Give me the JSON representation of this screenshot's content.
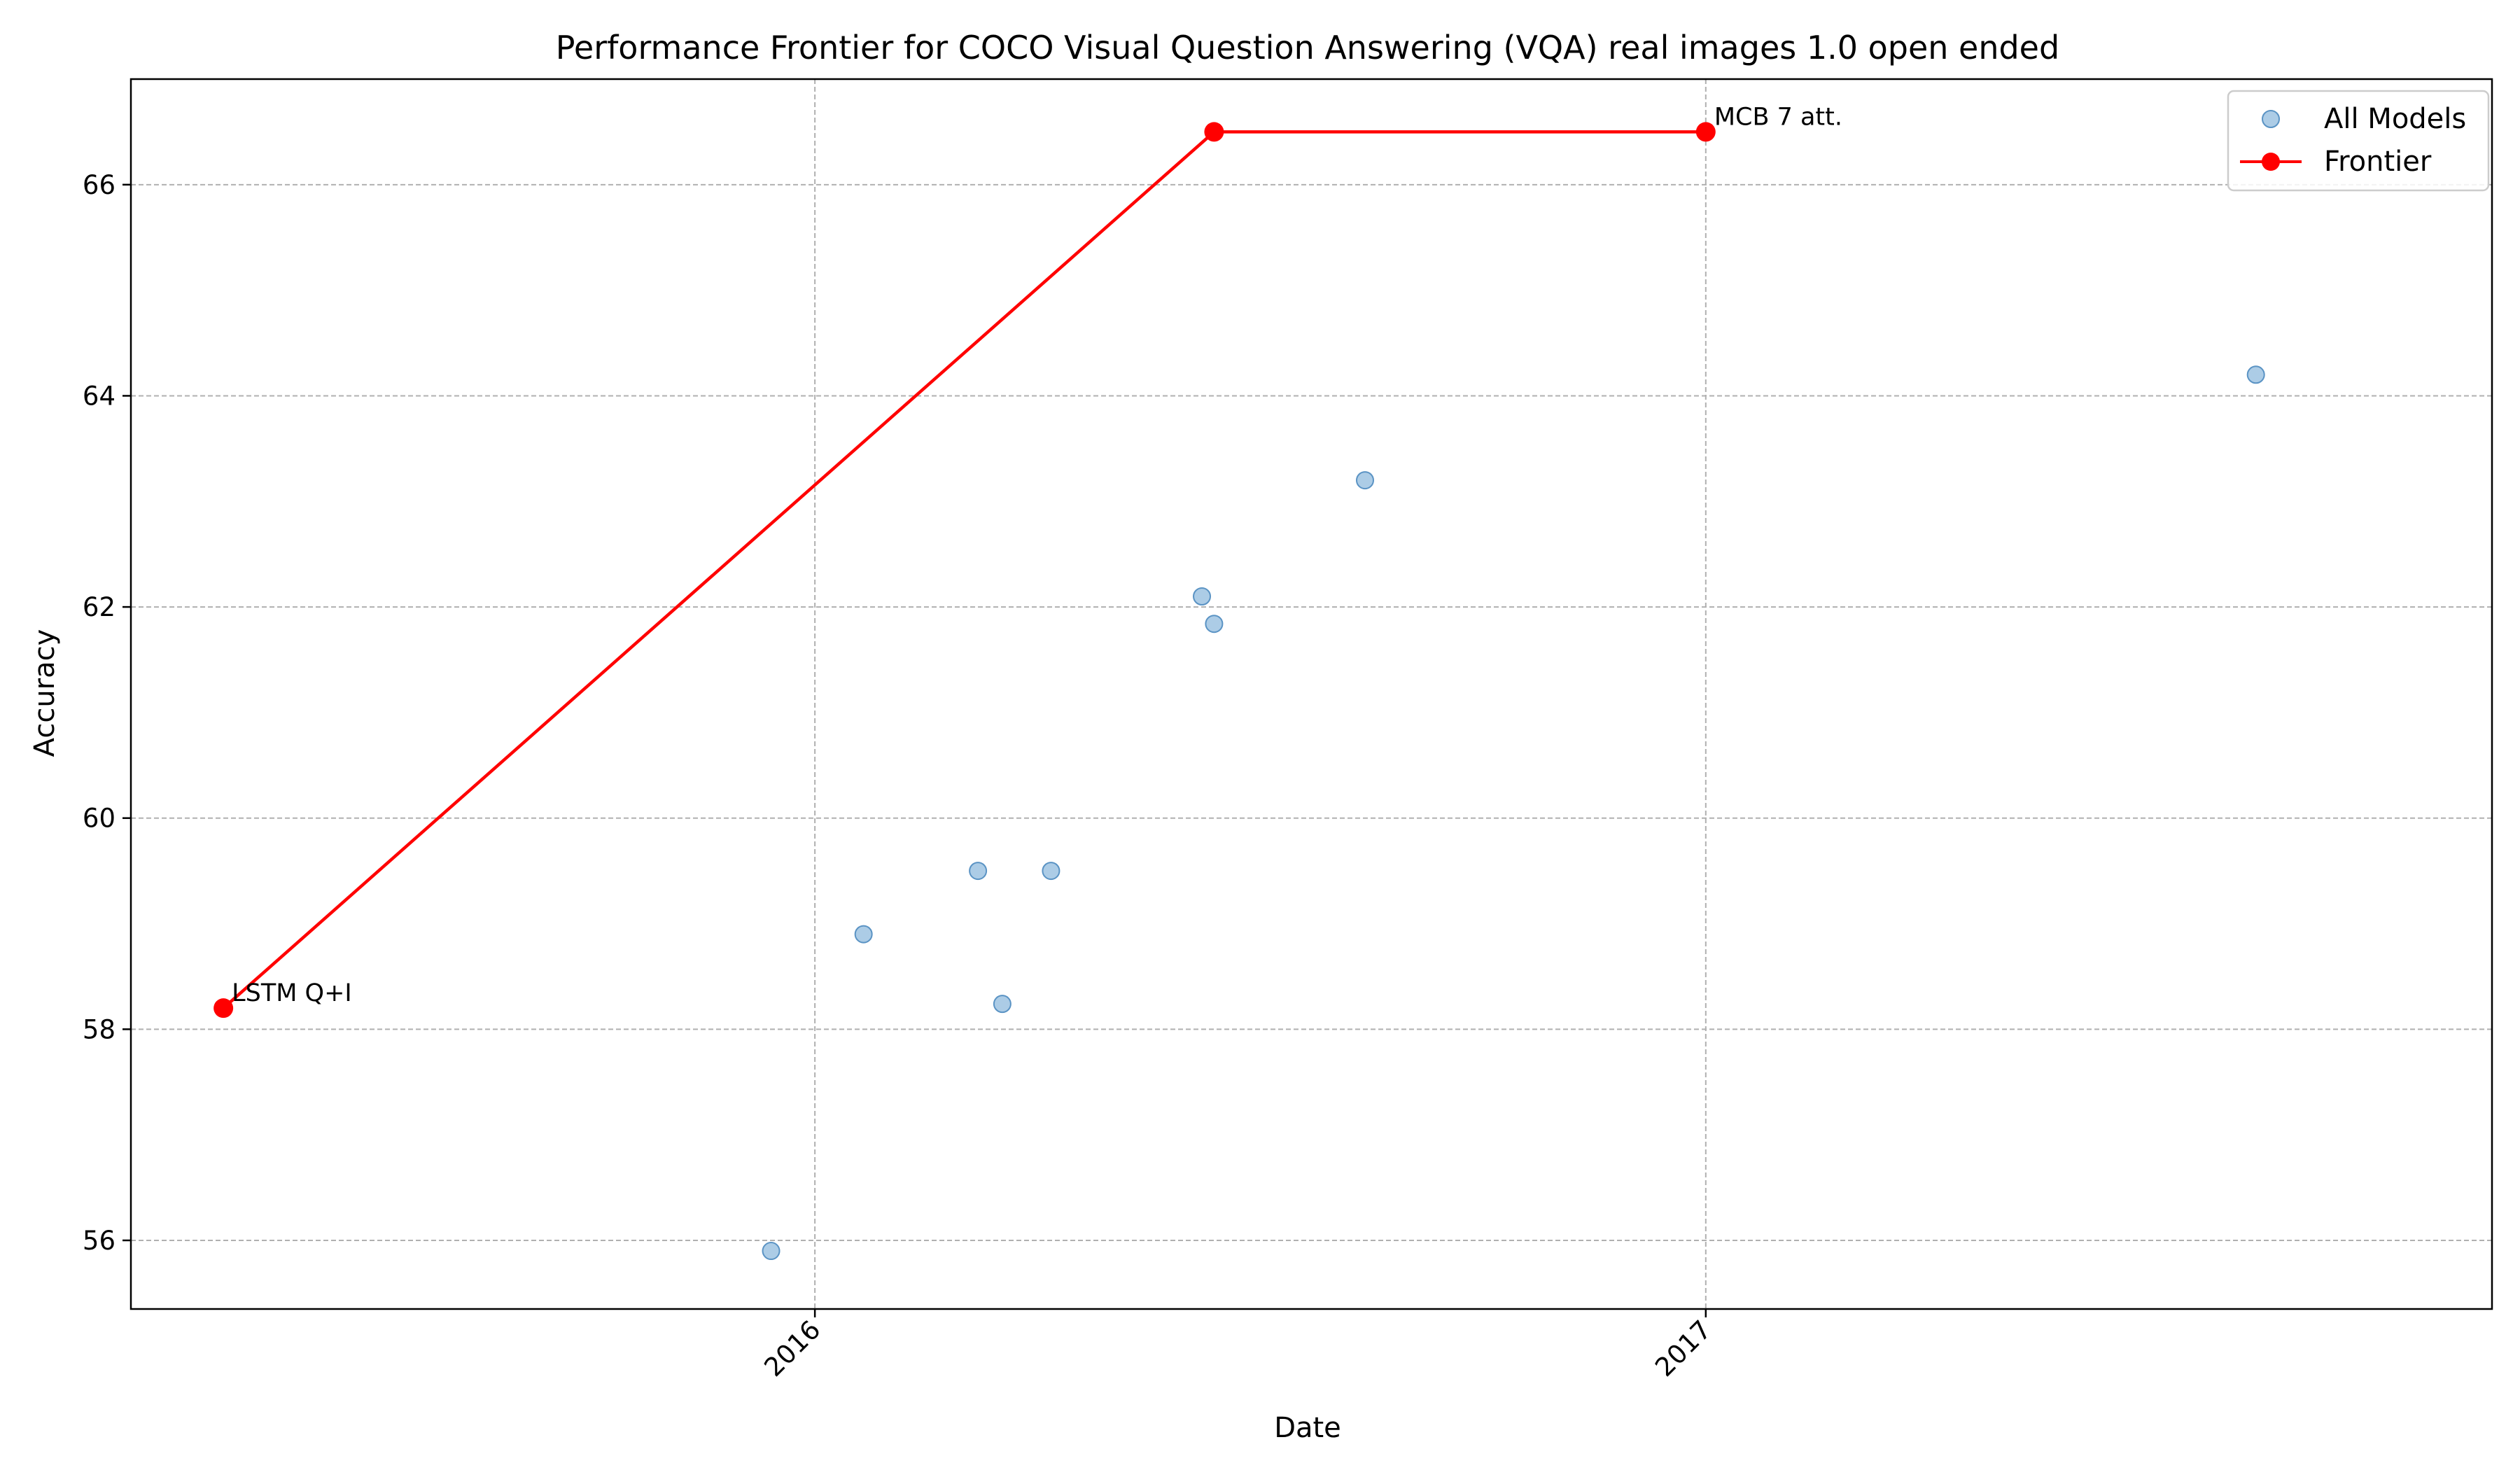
{
  "chart_data": {
    "type": "scatter",
    "title": "Performance Frontier for COCO Visual Question Answering (VQA) real images 1.0 open ended",
    "xlabel": "Date",
    "ylabel": "Accuracy",
    "x_type": "date",
    "xlim": [
      "2015-03-26",
      "2017-11-20"
    ],
    "ylim": [
      55.35,
      67.0
    ],
    "x_ticks": [
      {
        "date": "2016-01-01",
        "label": "2016"
      },
      {
        "date": "2017-01-01",
        "label": "2017"
      }
    ],
    "y_ticks": [
      56,
      58,
      60,
      62,
      64,
      66
    ],
    "grid": true,
    "legend_position": "top-right",
    "colors": {
      "all_models": "#7fb0d8",
      "frontier": "#ff0000"
    },
    "series": [
      {
        "name": "All Models",
        "kind": "scatter",
        "points": [
          {
            "x": "2015-05-03",
            "y": 58.2
          },
          {
            "x": "2015-12-14",
            "y": 55.9
          },
          {
            "x": "2016-01-21",
            "y": 58.9
          },
          {
            "x": "2016-03-08",
            "y": 59.5
          },
          {
            "x": "2016-03-18",
            "y": 58.24
          },
          {
            "x": "2016-04-07",
            "y": 59.5
          },
          {
            "x": "2016-06-08",
            "y": 62.1
          },
          {
            "x": "2016-06-13",
            "y": 61.84
          },
          {
            "x": "2016-06-13",
            "y": 66.5
          },
          {
            "x": "2016-08-14",
            "y": 63.2
          },
          {
            "x": "2017-01-01",
            "y": 66.5
          },
          {
            "x": "2017-08-15",
            "y": 64.2
          }
        ]
      },
      {
        "name": "Frontier",
        "kind": "line",
        "points": [
          {
            "x": "2015-05-03",
            "y": 58.2
          },
          {
            "x": "2016-06-13",
            "y": 66.5
          },
          {
            "x": "2017-01-01",
            "y": 66.5
          }
        ]
      }
    ],
    "annotations": [
      {
        "text": "LSTM Q+I",
        "x": "2015-05-03",
        "y": 58.2
      },
      {
        "text": "MCB 7 att.",
        "x": "2017-01-01",
        "y": 66.5
      }
    ]
  }
}
